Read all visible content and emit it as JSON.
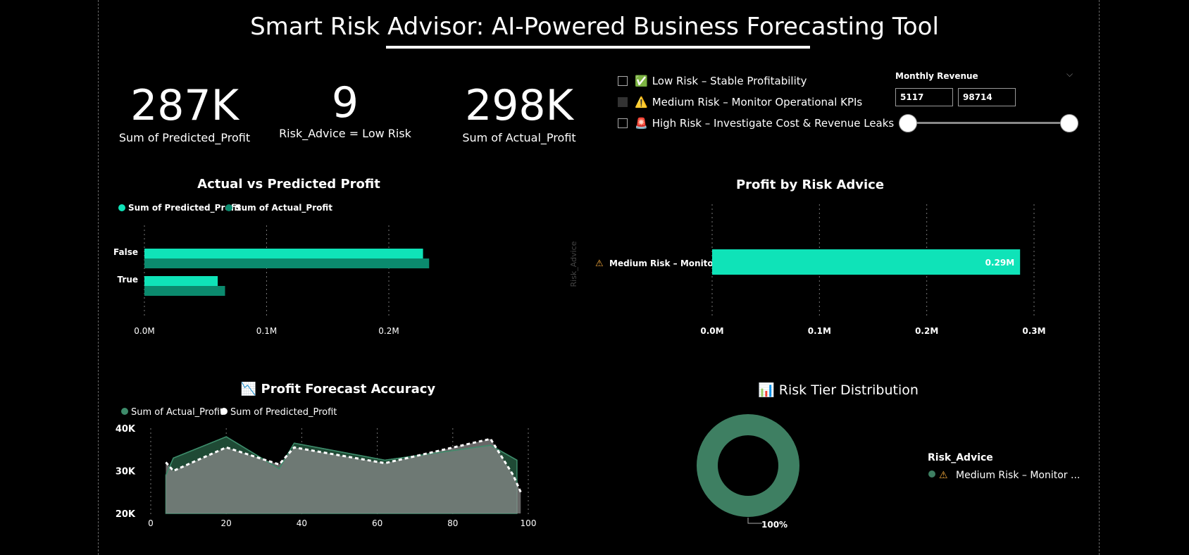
{
  "title": "Smart Risk Advisor: AI-Powered Business Forecasting Tool",
  "kpis": [
    {
      "value": "287K",
      "label": "Sum of Predicted_Profit"
    },
    {
      "value": "9",
      "label": "Risk_Advice = Low Risk"
    },
    {
      "value": "298K",
      "label": "Sum of Actual_Profit"
    }
  ],
  "risk_filter": [
    {
      "label": "Low Risk – Stable Profitability",
      "icon": "✅",
      "checked": false
    },
    {
      "label": "Medium Risk – Monitor Operational KPIs",
      "icon": "⚠️",
      "checked": true
    },
    {
      "label": "High Risk – Investigate Cost & Revenue Leaks",
      "icon": "🚨",
      "checked": false
    }
  ],
  "slicer": {
    "label": "Monthly Revenue",
    "min": "5117",
    "max": "98714"
  },
  "colors": {
    "teal": "#0FE3B8",
    "dark_teal": "#0B8A6E",
    "area_green": "#3D8B6A",
    "pred_white": "#ffffff",
    "donut": "#3E7F62"
  },
  "chart_data": [
    {
      "type": "bar",
      "title": "Actual vs Predicted Profit",
      "orientation": "horizontal",
      "categories": [
        "False",
        "True"
      ],
      "series": [
        {
          "name": "Sum of Predicted_Profit",
          "values": [
            0.228,
            0.06
          ]
        },
        {
          "name": "Sum of Actual_Profit",
          "values": [
            0.233,
            0.066
          ]
        }
      ],
      "xticks": [
        "0.0M",
        "0.1M",
        "0.2M"
      ],
      "xlim": [
        0,
        0.3
      ],
      "legend": "top-left"
    },
    {
      "type": "bar",
      "title": "Profit by Risk Advice",
      "orientation": "horizontal",
      "categories": [
        "Medium Risk – Monito..."
      ],
      "values": [
        0.287
      ],
      "data_labels": [
        "0.29M"
      ],
      "xticks": [
        "0.0M",
        "0.1M",
        "0.2M",
        "0.3M"
      ],
      "xlim": [
        0,
        0.3
      ],
      "ylabel": "Risk_Advice"
    },
    {
      "type": "area",
      "title": "Profit Forecast Accuracy",
      "title_icon": "📉",
      "series": [
        {
          "name": "Sum of Actual_Profit",
          "x": [
            4,
            6,
            20,
            34,
            38,
            62,
            90,
            97
          ],
          "y": [
            29000,
            33000,
            38000,
            30500,
            36500,
            32500,
            36000,
            32500
          ]
        },
        {
          "name": "Sum of Predicted_Profit",
          "x": [
            4,
            6,
            20,
            34,
            38,
            62,
            90,
            96,
            98
          ],
          "y": [
            32000,
            30000,
            35500,
            31500,
            35500,
            31800,
            37500,
            29000,
            25000
          ]
        }
      ],
      "xticks": [
        "0",
        "20",
        "40",
        "60",
        "80",
        "100"
      ],
      "yticks": [
        "20K",
        "30K",
        "40K"
      ],
      "xlim": [
        0,
        100
      ],
      "ylim": [
        20000,
        40000
      ],
      "legend": "top-left"
    },
    {
      "type": "pie",
      "title": "Risk Tier Distribution",
      "title_icon": "📊",
      "legend_title": "Risk_Advice",
      "slices": [
        {
          "label": "Medium Risk – Monitor ...",
          "value": 100
        }
      ],
      "data_label": "100%"
    }
  ]
}
